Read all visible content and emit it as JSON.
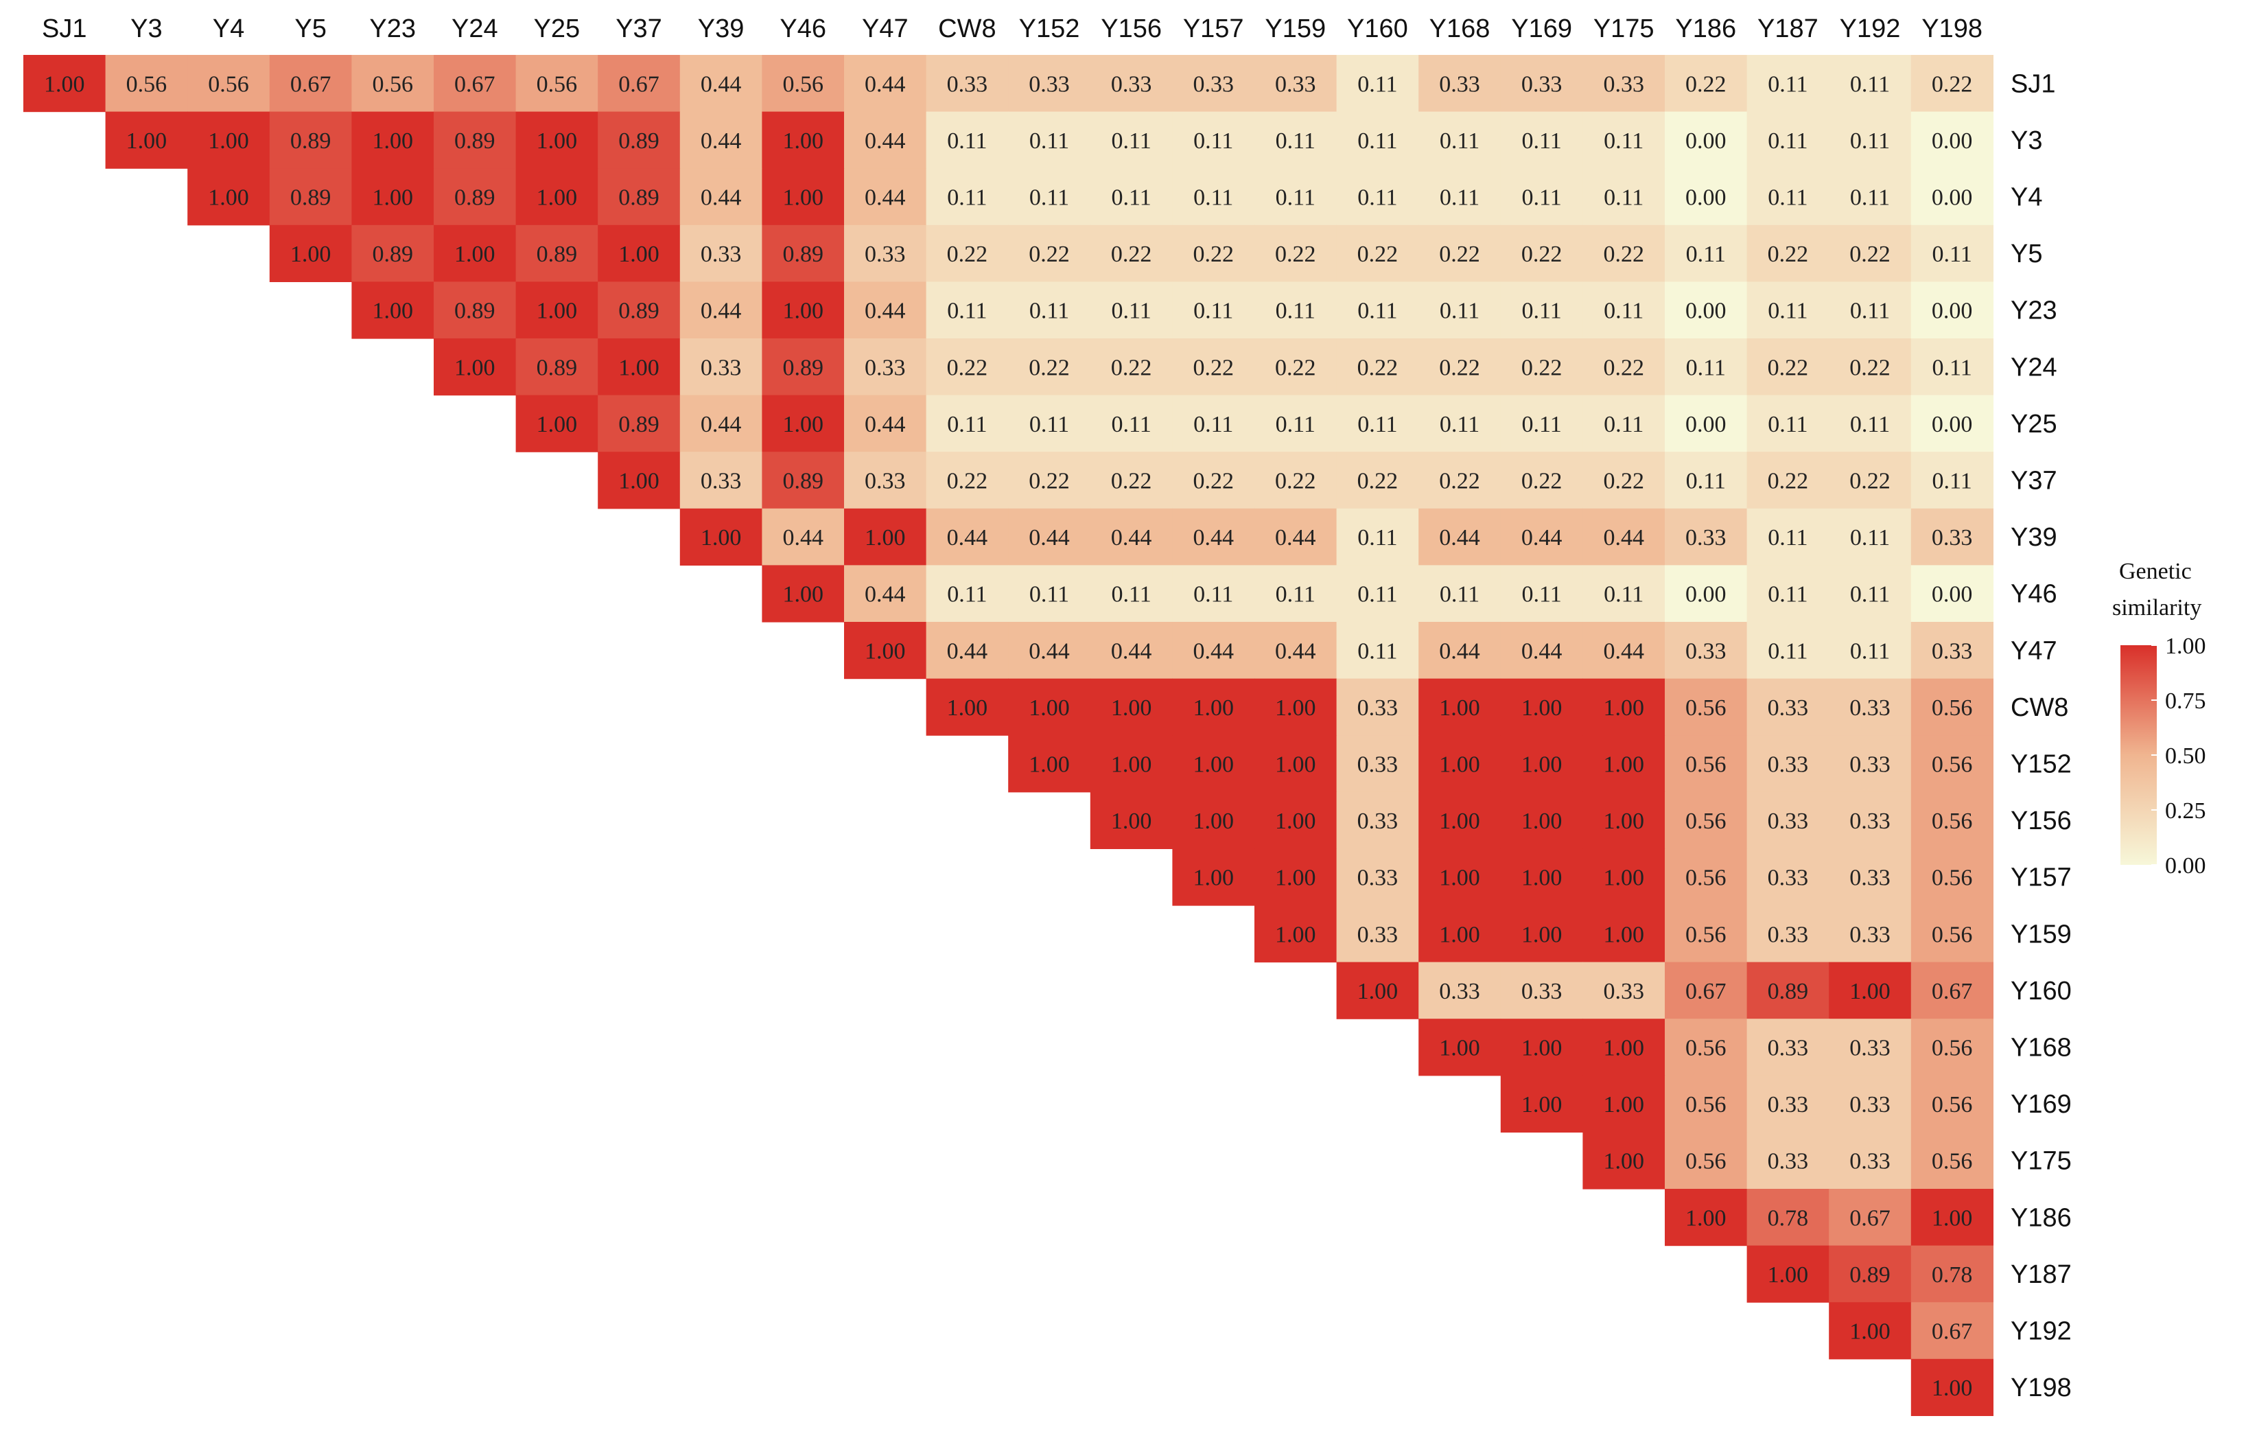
{
  "chart_data": {
    "type": "heatmap",
    "labels": [
      "SJ1",
      "Y3",
      "Y4",
      "Y5",
      "Y23",
      "Y24",
      "Y25",
      "Y37",
      "Y39",
      "Y46",
      "Y47",
      "CW8",
      "Y152",
      "Y156",
      "Y157",
      "Y159",
      "Y160",
      "Y168",
      "Y169",
      "Y175",
      "Y186",
      "Y187",
      "Y192",
      "Y198"
    ],
    "matrix_upper": [
      [
        1.0,
        0.56,
        0.56,
        0.67,
        0.56,
        0.67,
        0.56,
        0.67,
        0.44,
        0.56,
        0.44,
        0.33,
        0.33,
        0.33,
        0.33,
        0.33,
        0.11,
        0.33,
        0.33,
        0.33,
        0.22,
        0.11,
        0.11,
        0.22
      ],
      [
        1.0,
        1.0,
        0.89,
        1.0,
        0.89,
        1.0,
        0.89,
        0.44,
        1.0,
        0.44,
        0.11,
        0.11,
        0.11,
        0.11,
        0.11,
        0.11,
        0.11,
        0.11,
        0.11,
        0.0,
        0.11,
        0.11,
        0.0
      ],
      [
        1.0,
        0.89,
        1.0,
        0.89,
        1.0,
        0.89,
        0.44,
        1.0,
        0.44,
        0.11,
        0.11,
        0.11,
        0.11,
        0.11,
        0.11,
        0.11,
        0.11,
        0.11,
        0.0,
        0.11,
        0.11,
        0.0
      ],
      [
        1.0,
        0.89,
        1.0,
        0.89,
        1.0,
        0.33,
        0.89,
        0.33,
        0.22,
        0.22,
        0.22,
        0.22,
        0.22,
        0.22,
        0.22,
        0.22,
        0.22,
        0.11,
        0.22,
        0.22,
        0.11
      ],
      [
        1.0,
        0.89,
        1.0,
        0.89,
        0.44,
        1.0,
        0.44,
        0.11,
        0.11,
        0.11,
        0.11,
        0.11,
        0.11,
        0.11,
        0.11,
        0.11,
        0.0,
        0.11,
        0.11,
        0.0
      ],
      [
        1.0,
        0.89,
        1.0,
        0.33,
        0.89,
        0.33,
        0.22,
        0.22,
        0.22,
        0.22,
        0.22,
        0.22,
        0.22,
        0.22,
        0.22,
        0.11,
        0.22,
        0.22,
        0.11
      ],
      [
        1.0,
        0.89,
        0.44,
        1.0,
        0.44,
        0.11,
        0.11,
        0.11,
        0.11,
        0.11,
        0.11,
        0.11,
        0.11,
        0.11,
        0.0,
        0.11,
        0.11,
        0.0
      ],
      [
        1.0,
        0.33,
        0.89,
        0.33,
        0.22,
        0.22,
        0.22,
        0.22,
        0.22,
        0.22,
        0.22,
        0.22,
        0.22,
        0.11,
        0.22,
        0.22,
        0.11
      ],
      [
        1.0,
        0.44,
        1.0,
        0.44,
        0.44,
        0.44,
        0.44,
        0.44,
        0.11,
        0.44,
        0.44,
        0.44,
        0.33,
        0.11,
        0.11,
        0.33
      ],
      [
        1.0,
        0.44,
        0.11,
        0.11,
        0.11,
        0.11,
        0.11,
        0.11,
        0.11,
        0.11,
        0.11,
        0.0,
        0.11,
        0.11,
        0.0
      ],
      [
        1.0,
        0.44,
        0.44,
        0.44,
        0.44,
        0.44,
        0.11,
        0.44,
        0.44,
        0.44,
        0.33,
        0.11,
        0.11,
        0.33
      ],
      [
        1.0,
        1.0,
        1.0,
        1.0,
        1.0,
        0.33,
        1.0,
        1.0,
        1.0,
        0.56,
        0.33,
        0.33,
        0.56
      ],
      [
        1.0,
        1.0,
        1.0,
        1.0,
        0.33,
        1.0,
        1.0,
        1.0,
        0.56,
        0.33,
        0.33,
        0.56
      ],
      [
        1.0,
        1.0,
        1.0,
        0.33,
        1.0,
        1.0,
        1.0,
        0.56,
        0.33,
        0.33,
        0.56
      ],
      [
        1.0,
        1.0,
        0.33,
        1.0,
        1.0,
        1.0,
        0.56,
        0.33,
        0.33,
        0.56
      ],
      [
        1.0,
        0.33,
        1.0,
        1.0,
        1.0,
        0.56,
        0.33,
        0.33,
        0.56
      ],
      [
        1.0,
        0.33,
        0.33,
        0.33,
        0.67,
        0.89,
        1.0,
        0.67
      ],
      [
        1.0,
        1.0,
        1.0,
        0.56,
        0.33,
        0.33,
        0.56
      ],
      [
        1.0,
        1.0,
        0.56,
        0.33,
        0.33,
        0.56
      ],
      [
        1.0,
        0.56,
        0.33,
        0.33,
        0.56
      ],
      [
        1.0,
        0.78,
        0.67,
        1.0
      ],
      [
        1.0,
        0.89,
        0.78
      ],
      [
        1.0,
        0.67
      ],
      [
        1.0
      ]
    ],
    "value_format": "2 decimals",
    "colorscale": {
      "low": "#f7f7d9",
      "mid": "#f0b590",
      "high": "#d9302a",
      "range": [
        0,
        1
      ]
    },
    "legend": {
      "title_lines": [
        "Genetic",
        "similarity"
      ],
      "ticks": [
        "1.00",
        "0.75",
        "0.50",
        "0.25",
        "0.00"
      ],
      "tick_values": [
        1.0,
        0.75,
        0.5,
        0.25,
        0.0
      ],
      "placement": "right"
    },
    "column_labels_position": "top",
    "row_labels_position": "right"
  }
}
